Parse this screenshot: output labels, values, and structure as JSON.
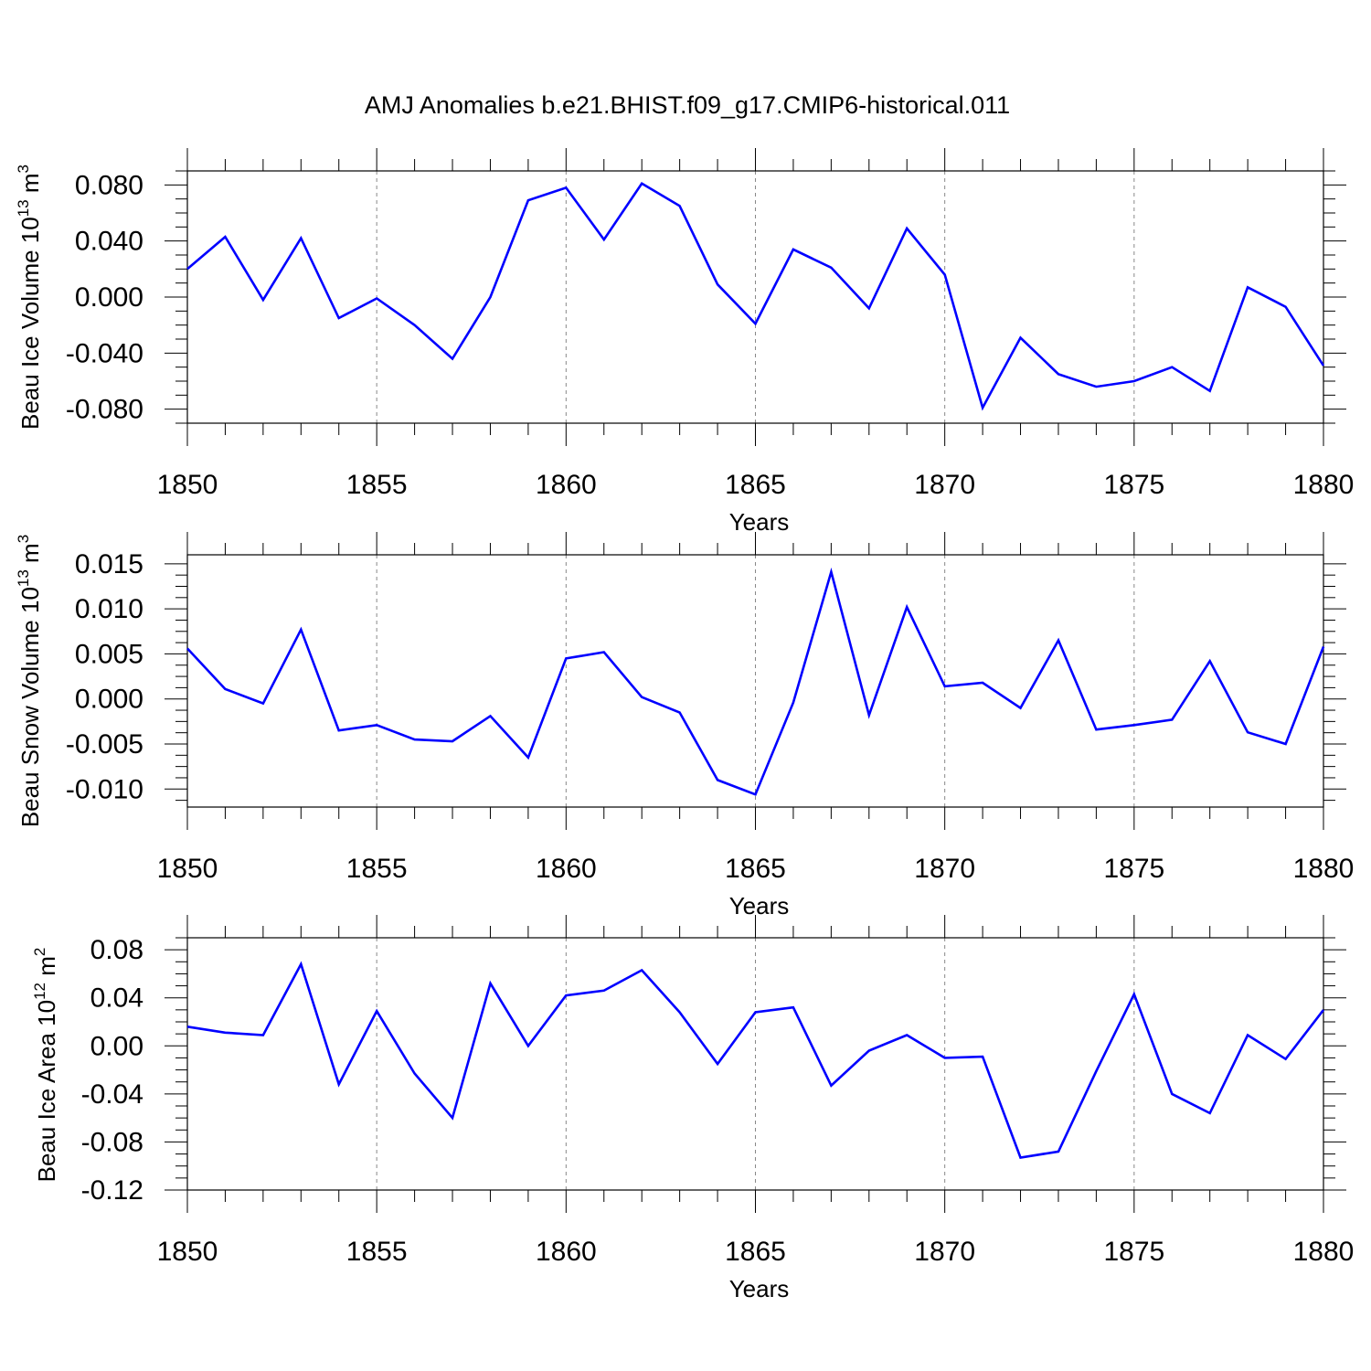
{
  "title": "AMJ Anomalies b.e21.BHIST.f09_g17.CMIP6-historical.011",
  "colors": {
    "series": "#0000ff",
    "axis": "#000000",
    "grid": "#888888"
  },
  "chart_data": [
    {
      "type": "line",
      "ylabel": {
        "text": "Beau Ice Volume 10",
        "exp": "13",
        "unit": " m",
        "unit_exp": "3"
      },
      "xlabel": "Years",
      "xlim": [
        1850,
        1880
      ],
      "ylim": [
        -0.09,
        0.09
      ],
      "yticks": [
        0.08,
        0.04,
        0.0,
        -0.04,
        -0.08
      ],
      "ytick_labels": [
        "0.080",
        "0.040",
        "0.000",
        "-0.040",
        "-0.080"
      ],
      "xticks": [
        1850,
        1855,
        1860,
        1865,
        1870,
        1875,
        1880
      ],
      "xtick_labels": [
        "1850",
        "1855",
        "1860",
        "1865",
        "1870",
        "1875",
        "1880"
      ],
      "grid": "vertical dashed at major x ticks",
      "x": [
        1850,
        1851,
        1852,
        1853,
        1854,
        1855,
        1856,
        1857,
        1858,
        1859,
        1860,
        1861,
        1862,
        1863,
        1864,
        1865,
        1866,
        1867,
        1868,
        1869,
        1870,
        1871,
        1872,
        1873,
        1874,
        1875,
        1876,
        1877,
        1878,
        1879,
        1880
      ],
      "values": [
        0.02,
        0.043,
        -0.002,
        0.042,
        -0.015,
        -0.001,
        -0.02,
        -0.044,
        0.0,
        0.069,
        0.078,
        0.041,
        0.081,
        0.065,
        0.009,
        -0.019,
        0.034,
        0.021,
        -0.008,
        0.049,
        0.016,
        -0.079,
        -0.029,
        -0.055,
        -0.064,
        -0.06,
        -0.05,
        -0.067,
        0.007,
        -0.007,
        -0.049
      ]
    },
    {
      "type": "line",
      "ylabel": {
        "text": "Beau Snow Volume 10",
        "exp": "13",
        "unit": " m",
        "unit_exp": "3"
      },
      "xlabel": "Years",
      "xlim": [
        1850,
        1880
      ],
      "ylim": [
        -0.012,
        0.016
      ],
      "yticks": [
        0.015,
        0.01,
        0.005,
        0.0,
        -0.005,
        -0.01
      ],
      "ytick_labels": [
        "0.015",
        "0.010",
        "0.005",
        "0.000",
        "-0.005",
        "-0.010"
      ],
      "xticks": [
        1850,
        1855,
        1860,
        1865,
        1870,
        1875,
        1880
      ],
      "xtick_labels": [
        "1850",
        "1855",
        "1860",
        "1865",
        "1870",
        "1875",
        "1880"
      ],
      "grid": "vertical dashed at major x ticks",
      "x": [
        1850,
        1851,
        1852,
        1853,
        1854,
        1855,
        1856,
        1857,
        1858,
        1859,
        1860,
        1861,
        1862,
        1863,
        1864,
        1865,
        1866,
        1867,
        1868,
        1869,
        1870,
        1871,
        1872,
        1873,
        1874,
        1875,
        1876,
        1877,
        1878,
        1879,
        1880
      ],
      "values": [
        0.0056,
        0.0011,
        -0.0005,
        0.0077,
        -0.0035,
        -0.0029,
        -0.0045,
        -0.0047,
        -0.0019,
        -0.0065,
        0.0045,
        0.0052,
        0.0002,
        -0.0015,
        -0.009,
        -0.0106,
        -0.0004,
        0.0141,
        -0.0018,
        0.0102,
        0.0014,
        0.0018,
        -0.001,
        0.0065,
        -0.0034,
        -0.0029,
        -0.0023,
        0.0042,
        -0.0037,
        -0.005,
        0.0058
      ]
    },
    {
      "type": "line",
      "ylabel": {
        "text": "Beau Ice Area 10",
        "exp": "12",
        "unit": " m",
        "unit_exp": "2"
      },
      "xlabel": "Years",
      "xlim": [
        1850,
        1880
      ],
      "ylim": [
        -0.12,
        0.09
      ],
      "yticks": [
        0.08,
        0.04,
        0.0,
        -0.04,
        -0.08,
        -0.12
      ],
      "ytick_labels": [
        "0.08",
        "0.04",
        "0.00",
        "-0.04",
        "-0.08",
        "-0.12"
      ],
      "xticks": [
        1850,
        1855,
        1860,
        1865,
        1870,
        1875,
        1880
      ],
      "xtick_labels": [
        "1850",
        "1855",
        "1860",
        "1865",
        "1870",
        "1875",
        "1880"
      ],
      "grid": "vertical dashed at major x ticks",
      "x": [
        1850,
        1851,
        1852,
        1853,
        1854,
        1855,
        1856,
        1857,
        1858,
        1859,
        1860,
        1861,
        1862,
        1863,
        1864,
        1865,
        1866,
        1867,
        1868,
        1869,
        1870,
        1871,
        1872,
        1873,
        1874,
        1875,
        1876,
        1877,
        1878,
        1879,
        1880
      ],
      "values": [
        0.016,
        0.011,
        0.009,
        0.068,
        -0.032,
        0.029,
        -0.023,
        -0.06,
        0.052,
        0.0,
        0.042,
        0.046,
        0.063,
        0.028,
        -0.015,
        0.028,
        0.032,
        -0.033,
        -0.004,
        0.009,
        -0.01,
        -0.009,
        -0.093,
        -0.088,
        -0.021,
        0.043,
        -0.04,
        -0.056,
        0.009,
        -0.011,
        0.03
      ]
    }
  ]
}
